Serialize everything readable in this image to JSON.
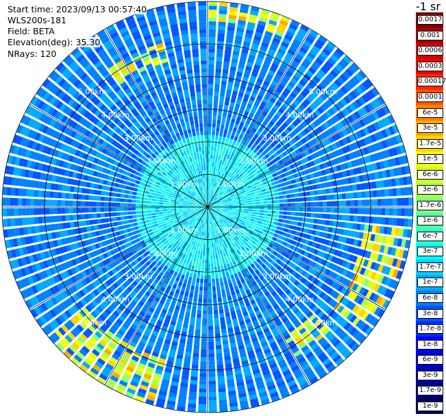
{
  "header": {
    "start_time": "Start time: 2023/09/13 00:57:40",
    "instrument": "WLS200s-181",
    "field": "Field: BETA",
    "elevation": "Elevation(deg): 35.30",
    "nrays": "NRays: 120"
  },
  "colorbar": {
    "title": "-1 sr",
    "labels": [
      "0.0017",
      "0.001",
      "0.0006",
      "0.0003",
      "0.00017",
      "0.0001",
      "6e-5",
      "3e-5",
      "1.7e-5",
      "1e-5",
      "6e-6",
      "3e-6",
      "1.7e-6",
      "1e-6",
      "6e-7",
      "3e-7",
      "1.7e-7",
      "1e-7",
      "6e-8",
      "3e-8",
      "1.7e-8",
      "1e-8",
      "6e-9",
      "3e-9",
      "1.7e-9",
      "1e-9"
    ],
    "colors": [
      "#800000",
      "#a80000",
      "#d40000",
      "#f00000",
      "#ff2a00",
      "#ff5500",
      "#ff7f00",
      "#ffaa00",
      "#ffd400",
      "#faff00",
      "#d4ff26",
      "#aaff4d",
      "#80ff80",
      "#4dffaa",
      "#26ffd4",
      "#00fafa",
      "#00d4ff",
      "#00aaff",
      "#0080ff",
      "#0055ff",
      "#002aff",
      "#0000fa",
      "#0000d4",
      "#0000aa",
      "#000080",
      "#00005a"
    ]
  },
  "chart_data": {
    "type": "heatmap",
    "projection": "polar (PPI)",
    "field": "BETA",
    "unit": "-1 sr",
    "nrays": 120,
    "range_rings_km": [
      1.0,
      2.0,
      3.0,
      4.0,
      5.0
    ],
    "ring_labels": [
      "1.00km",
      "2.00km",
      "3.00km",
      "4.00km",
      "5.00km"
    ],
    "max_range_km": 6.3,
    "color_scale": "log",
    "color_range": [
      1e-09,
      0.0017
    ],
    "dominant_value_range": [
      3e-08,
      1e-07
    ],
    "near_range_value_range": [
      1e-07,
      6e-07
    ],
    "elevated_sectors": [
      {
        "azimuth_deg": [
          325,
          345
        ],
        "range_km": [
          4.6,
          5.2
        ],
        "value_range": [
          1.7e-06,
          3e-05
        ]
      },
      {
        "azimuth_deg": [
          0,
          25
        ],
        "range_km": [
          5.6,
          6.2
        ],
        "value_range": [
          1.7e-06,
          3e-05
        ]
      },
      {
        "azimuth_deg": [
          95,
          130
        ],
        "range_km": [
          4.8,
          6.1
        ],
        "value_range": [
          1.7e-06,
          3e-05
        ]
      },
      {
        "azimuth_deg": [
          135,
          150
        ],
        "range_km": [
          4.5,
          5.3
        ],
        "value_range": [
          1.7e-06,
          1.7e-05
        ]
      },
      {
        "azimuth_deg": [
          195,
          230
        ],
        "range_km": [
          4.8,
          6.2
        ],
        "value_range": [
          1.7e-06,
          3e-05
        ]
      }
    ]
  }
}
